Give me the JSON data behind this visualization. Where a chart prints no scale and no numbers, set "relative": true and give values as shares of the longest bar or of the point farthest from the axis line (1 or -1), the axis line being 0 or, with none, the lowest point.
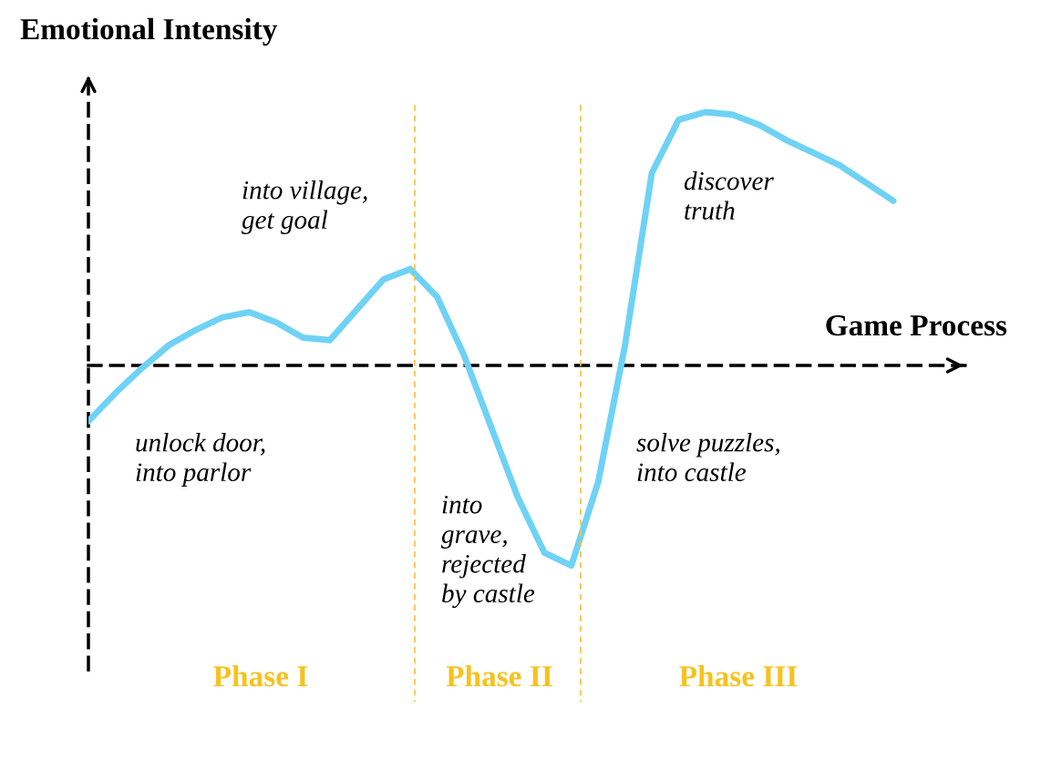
{
  "chart_data": {
    "type": "line",
    "relative": true,
    "xlabel": "Game Process",
    "ylabel": "Emotional Intensity",
    "categories": [
      null,
      null,
      null,
      null,
      null,
      null,
      null,
      null,
      null,
      null,
      null,
      null,
      null,
      null,
      null,
      null,
      null,
      null,
      null,
      null,
      null,
      null,
      null,
      null,
      null,
      null,
      null,
      null,
      null,
      null,
      null
    ],
    "series": [
      {
        "color": "#6fd2f5",
        "values": [
          -0.22,
          -0.11,
          -0.01,
          0.08,
          0.14,
          0.19,
          0.21,
          0.17,
          0.11,
          0.1,
          0.22,
          0.34,
          0.38,
          0.27,
          0.04,
          -0.24,
          -0.52,
          -0.74,
          -0.79,
          -0.46,
          0.08,
          0.76,
          0.97,
          1,
          0.99,
          0.95,
          0.89,
          0.84,
          0.79,
          0.72,
          0.65
        ]
      }
    ],
    "annotations": [
      "unlock door,\ninto parlor",
      "into village,\nget goal",
      "into\ngrave,\nrejected\nby castle",
      "solve puzzles,\ninto castle",
      "discover\ntruth",
      "Phase I",
      "Phase II",
      "Phase III"
    ]
  }
}
